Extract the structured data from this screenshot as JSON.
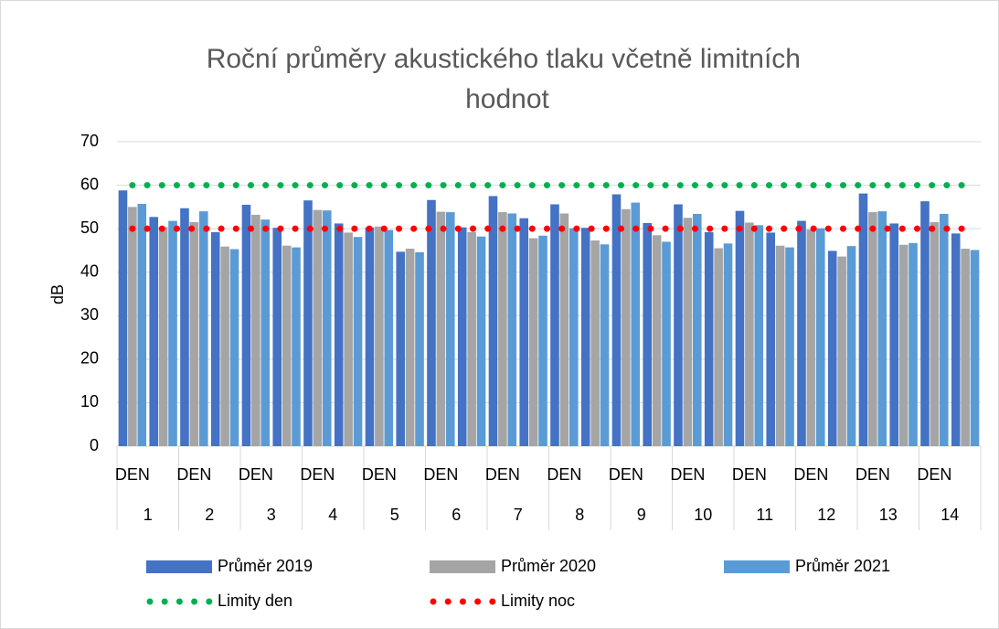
{
  "chart_data": {
    "type": "bar",
    "title": "Roční průměry akustického tlaku včetně limitních hodnot",
    "y_label": "dB",
    "categories": [
      "DEN",
      null,
      "DEN",
      null,
      "DEN",
      null,
      "DEN",
      null,
      "DEN",
      null,
      "DEN",
      null,
      "DEN",
      null,
      "DEN",
      null,
      "DEN",
      null,
      "DEN",
      null,
      "DEN",
      null,
      "DEN",
      null,
      "DEN",
      null,
      "DEN",
      null
    ],
    "groups": [
      "1",
      "2",
      "3",
      "4",
      "5",
      "6",
      "7",
      "8",
      "9",
      "10",
      "11",
      "12",
      "13",
      "14"
    ],
    "series": [
      {
        "name": "Průměr 2019",
        "color": "#4472c4",
        "type": "bar",
        "values": [
          58.8,
          52.7,
          54.7,
          49.2,
          55.5,
          50.2,
          56.5,
          51.2,
          50.3,
          44.7,
          56.6,
          50.3,
          57.5,
          52.4,
          55.6,
          50.2,
          57.9,
          51.3,
          55.6,
          49.2,
          54.1,
          49.1,
          51.8,
          44.9,
          58.1,
          51.2,
          56.3,
          48.9
        ]
      },
      {
        "name": "Průměr 2020",
        "color": "#a5a5a5",
        "type": "bar",
        "values": [
          55.0,
          50.4,
          51.5,
          45.9,
          53.2,
          46.1,
          54.3,
          49.1,
          50.5,
          45.4,
          53.9,
          49.2,
          53.8,
          47.8,
          53.5,
          47.3,
          54.5,
          48.5,
          52.5,
          45.5,
          51.4,
          46.1,
          49.8,
          43.6,
          53.8,
          46.3,
          51.5,
          45.4
        ]
      },
      {
        "name": "Průměr 2021",
        "color": "#5b9bd5",
        "type": "bar",
        "values": [
          55.7,
          51.8,
          54.0,
          45.3,
          52.1,
          45.7,
          54.2,
          48.1,
          49.7,
          44.6,
          53.8,
          48.2,
          53.5,
          48.4,
          50.1,
          46.4,
          56.0,
          47.0,
          53.4,
          46.6,
          50.8,
          45.7,
          50.1,
          46.0,
          54.0,
          46.7,
          53.4,
          45.1
        ]
      },
      {
        "name": "Limity den",
        "color": "#00b050",
        "type": "line",
        "values": [
          60,
          60,
          60,
          60,
          60,
          60,
          60,
          60,
          60,
          60,
          60,
          60,
          60,
          60,
          60,
          60,
          60,
          60,
          60,
          60,
          60,
          60,
          60,
          60,
          60,
          60,
          60,
          60
        ]
      },
      {
        "name": "Limity noc",
        "color": "#ff0000",
        "type": "line",
        "values": [
          50,
          50,
          50,
          50,
          50,
          50,
          50,
          50,
          50,
          50,
          50,
          50,
          50,
          50,
          50,
          50,
          50,
          50,
          50,
          50,
          50,
          50,
          50,
          50,
          50,
          50,
          50,
          50
        ]
      }
    ],
    "ylim": [
      0,
      70
    ],
    "yticks": [
      0,
      10,
      20,
      30,
      40,
      50,
      60,
      70
    ],
    "grid": true
  }
}
